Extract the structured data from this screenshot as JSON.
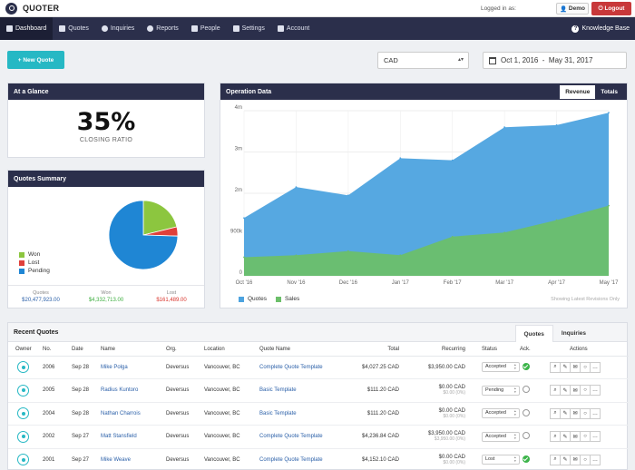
{
  "app": {
    "brand": "QUOTER",
    "logged_in_as": "Logged in as:",
    "user": "Demo",
    "logout": "Logout"
  },
  "nav": {
    "items": [
      {
        "label": "Dashboard",
        "icon": "home-icon",
        "active": true
      },
      {
        "label": "Quotes",
        "icon": "document-icon"
      },
      {
        "label": "Inquiries",
        "icon": "chat-icon"
      },
      {
        "label": "Reports",
        "icon": "pie-icon"
      },
      {
        "label": "People",
        "icon": "people-icon"
      },
      {
        "label": "Settings",
        "icon": "gears-icon"
      },
      {
        "label": "Account",
        "icon": "bank-icon"
      }
    ],
    "kb": "Knowledge Base"
  },
  "toolbar": {
    "new_quote": "+ New Quote",
    "currency": "CAD",
    "date_range": "Oct 1, 2016  -  May 31, 2017"
  },
  "glance": {
    "title": "At a Glance",
    "value": "35%",
    "label": "CLOSING RATIO"
  },
  "summary": {
    "title": "Quotes Summary",
    "legend": [
      {
        "label": "Won",
        "color": "#8cc63f"
      },
      {
        "label": "Lost",
        "color": "#e0403a"
      },
      {
        "label": "Pending",
        "color": "#1f86d4"
      }
    ],
    "stats": [
      {
        "label": "Quotes",
        "value": "$20,477,923.00",
        "color": "#2a5fa8"
      },
      {
        "label": "Won",
        "value": "$4,332,713.00",
        "color": "#3cae3f"
      },
      {
        "label": "Lost",
        "value": "$161,489.00",
        "color": "#d9332b"
      }
    ]
  },
  "operation": {
    "title": "Operation Data",
    "tabs": [
      "Revenue",
      "Totals"
    ],
    "latest": "Showing Latest Revisions Only"
  },
  "chart_data": [
    {
      "type": "pie",
      "categories": [
        "Won",
        "Lost",
        "Pending"
      ],
      "values": [
        21.2,
        4.3,
        74.5
      ],
      "colors": [
        "#8cc63f",
        "#e0403a",
        "#1f86d4"
      ]
    },
    {
      "type": "area",
      "x": [
        "Oct '16",
        "Nov '16",
        "Dec '16",
        "Jan '17",
        "Feb '17",
        "Mar '17",
        "Apr '17",
        "May '17"
      ],
      "yticks": [
        "0",
        "900k",
        "2m",
        "3m",
        "4m"
      ],
      "ylim": [
        0,
        4000000
      ],
      "series": [
        {
          "name": "Quotes",
          "color": "#4da3df",
          "values": [
            1400000,
            2150000,
            1950000,
            2850000,
            2800000,
            3600000,
            3650000,
            3950000
          ]
        },
        {
          "name": "Sales",
          "color": "#6cbf6a",
          "values": [
            450000,
            500000,
            600000,
            500000,
            950000,
            1050000,
            1350000,
            1700000
          ]
        }
      ],
      "legend": "bottom-left",
      "grid": true
    }
  ],
  "recent": {
    "title": "Recent Quotes",
    "tabs": [
      "Quotes",
      "Inquiries"
    ],
    "columns": [
      "Owner",
      "No.",
      "Date",
      "Name",
      "Org.",
      "Location",
      "Quote Name",
      "Total",
      "Recurring",
      "Status",
      "Ack.",
      "Actions"
    ],
    "rows": [
      {
        "no": "2006",
        "date": "Sep 28",
        "name": "Mike Polga",
        "org": "Deversus",
        "loc": "Vancouver, BC",
        "quote": "Complete Quote Template",
        "total": "$4,027.25 CAD",
        "rec": "$3,950.00 CAD",
        "rec_sub": "",
        "status": "Accepted",
        "ack": true
      },
      {
        "no": "2005",
        "date": "Sep 28",
        "name": "Radius Kuntoro",
        "org": "Deversus",
        "loc": "Vancouver, BC",
        "quote": "Basic Template",
        "total": "$111.20 CAD",
        "rec": "$0.00 CAD",
        "rec_sub": "$0.00 (0%)",
        "status": "Pending",
        "ack": false
      },
      {
        "no": "2004",
        "date": "Sep 28",
        "name": "Nathan Charrois",
        "org": "Deversus",
        "loc": "Vancouver, BC",
        "quote": "Basic Template",
        "total": "$111.20 CAD",
        "rec": "$0.00 CAD",
        "rec_sub": "$0.00 (0%)",
        "status": "Accepted",
        "ack": false
      },
      {
        "no": "2002",
        "date": "Sep 27",
        "name": "Matt Stansfield",
        "org": "Deversus",
        "loc": "Vancouver, BC",
        "quote": "Complete Quote Template",
        "total": "$4,236.84 CAD",
        "rec": "$3,950.00 CAD",
        "rec_sub": "$3,950.00 (0%)",
        "status": "Accepted",
        "ack": false
      },
      {
        "no": "2001",
        "date": "Sep 27",
        "name": "Mike Weave",
        "org": "Deversus",
        "loc": "Vancouver, BC",
        "quote": "Complete Quote Template",
        "total": "$4,152.10 CAD",
        "rec": "$0.00 CAD",
        "rec_sub": "$0.00 (0%)",
        "status": "Lost",
        "ack": true
      }
    ],
    "actions": [
      "search-icon",
      "edit-icon",
      "mail-icon",
      "comment-icon",
      "more-icon"
    ]
  }
}
